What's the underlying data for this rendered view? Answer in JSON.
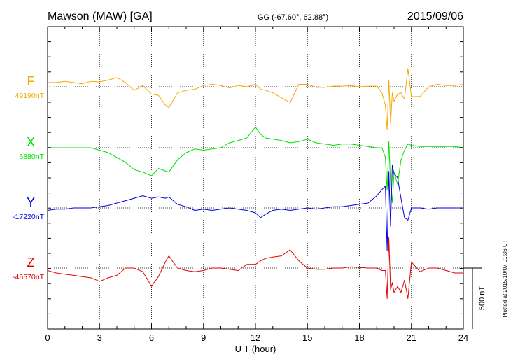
{
  "header": {
    "station": "Mawson (MAW)  [GA]",
    "coords": "GG (-67.60°,  62.88°)",
    "date": "2015/09/06"
  },
  "side_note": "Plotted at 2015/10/07 01:36 UT",
  "scale_label": "500 nT",
  "chart_data": {
    "type": "line",
    "xlabel": "U T (hour)",
    "xlim": [
      0,
      24
    ],
    "xticks": [
      "0",
      "3",
      "6",
      "9",
      "12",
      "15",
      "18",
      "21",
      "24"
    ],
    "scale_bar_nT": 500,
    "series": [
      {
        "name": "F",
        "baseline_label": "49190nT",
        "baseline_nT": 49190,
        "color": "#f5a800",
        "x": [
          0,
          0.5,
          1,
          1.5,
          2,
          2.5,
          3,
          3.5,
          4,
          4.5,
          5,
          5.5,
          6,
          6.4,
          6.8,
          7,
          7.5,
          8,
          8.5,
          9,
          9.5,
          10,
          10.5,
          11,
          11.5,
          12,
          12.3,
          12.6,
          13,
          13.5,
          14,
          14.5,
          15,
          15.5,
          16,
          16.5,
          17,
          17.5,
          18,
          18.5,
          19,
          19.3,
          19.5,
          19.6,
          19.7,
          19.8,
          19.9,
          20,
          20.2,
          20.4,
          20.6,
          20.8,
          21,
          21.5,
          22,
          22.5,
          23,
          23.5,
          24
        ],
        "y": [
          35,
          35,
          45,
          35,
          25,
          45,
          40,
          55,
          75,
          35,
          -30,
          10,
          -60,
          -70,
          -150,
          -170,
          -50,
          -30,
          -20,
          10,
          20,
          10,
          -10,
          10,
          0,
          20,
          -20,
          -30,
          -50,
          -90,
          -130,
          20,
          20,
          -5,
          -5,
          5,
          5,
          10,
          0,
          5,
          5,
          -50,
          -150,
          -350,
          50,
          -300,
          -50,
          -120,
          -60,
          -50,
          -100,
          150,
          -80,
          -80,
          0,
          20,
          10,
          10,
          20
        ]
      },
      {
        "name": "X",
        "baseline_label": "6880nT",
        "baseline_nT": 6880,
        "color": "#00e000",
        "x": [
          0,
          0.5,
          1,
          1.5,
          2,
          2.5,
          3,
          3.5,
          4,
          4.5,
          5,
          5.5,
          6,
          6.4,
          6.8,
          7,
          7.5,
          8,
          8.5,
          9,
          9.5,
          10,
          10.5,
          11,
          11.5,
          12,
          12.3,
          12.6,
          13,
          13.5,
          14,
          14.5,
          15,
          15.5,
          16,
          16.5,
          17,
          17.5,
          18,
          18.5,
          19,
          19.3,
          19.5,
          19.6,
          19.7,
          19.8,
          19.9,
          20,
          20.2,
          20.4,
          20.6,
          20.8,
          21,
          21.5,
          22,
          22.5,
          23,
          23.5,
          24
        ],
        "y": [
          0,
          0,
          0,
          0,
          0,
          0,
          -20,
          -40,
          -80,
          -120,
          -180,
          -200,
          -230,
          -170,
          -190,
          -200,
          -100,
          -40,
          -10,
          -20,
          -10,
          0,
          40,
          60,
          80,
          170,
          110,
          80,
          70,
          60,
          40,
          50,
          70,
          40,
          30,
          20,
          30,
          30,
          20,
          10,
          0,
          0,
          -80,
          -350,
          50,
          -300,
          -450,
          -200,
          -300,
          -100,
          -20,
          30,
          20,
          10,
          10,
          10,
          10,
          10,
          0
        ]
      },
      {
        "name": "Y",
        "baseline_label": "-17220nT",
        "baseline_nT": -17220,
        "color": "#0000e0",
        "x": [
          0,
          0.5,
          1,
          1.5,
          2,
          2.5,
          3,
          3.5,
          4,
          4.5,
          5,
          5.5,
          6,
          6.4,
          6.8,
          7,
          7.5,
          8,
          8.5,
          9,
          9.5,
          10,
          10.5,
          11,
          11.5,
          12,
          12.3,
          12.6,
          13,
          13.5,
          14,
          14.5,
          15,
          15.5,
          16,
          16.5,
          17,
          17.5,
          18,
          18.5,
          19,
          19.3,
          19.5,
          19.6,
          19.7,
          19.8,
          19.9,
          20,
          20.2,
          20.4,
          20.6,
          20.8,
          21,
          21.5,
          22,
          22.5,
          23,
          23.5,
          24
        ],
        "y": [
          -20,
          -10,
          -10,
          0,
          0,
          0,
          10,
          20,
          40,
          60,
          80,
          100,
          80,
          90,
          80,
          90,
          30,
          10,
          -20,
          -10,
          -20,
          -10,
          0,
          -10,
          -20,
          -40,
          -80,
          -50,
          -20,
          -10,
          -20,
          -10,
          0,
          -10,
          0,
          10,
          10,
          20,
          30,
          40,
          100,
          150,
          180,
          -350,
          300,
          -150,
          350,
          280,
          250,
          80,
          -80,
          -100,
          0,
          0,
          -10,
          0,
          0,
          0,
          0
        ]
      },
      {
        "name": "Z",
        "baseline_label": "-45570nT",
        "baseline_nT": -45570,
        "color": "#e00000",
        "x": [
          0,
          0.5,
          1,
          1.5,
          2,
          2.5,
          3,
          3.5,
          4,
          4.5,
          5,
          5.5,
          6,
          6.4,
          6.8,
          7,
          7.5,
          8,
          8.5,
          9,
          9.5,
          10,
          10.5,
          11,
          11.5,
          12,
          12.3,
          12.6,
          13,
          13.5,
          14,
          14.5,
          15,
          15.5,
          16,
          16.5,
          17,
          17.5,
          18,
          18.5,
          19,
          19.3,
          19.5,
          19.6,
          19.7,
          19.8,
          19.9,
          20,
          20.2,
          20.4,
          20.6,
          20.8,
          21,
          21.5,
          22,
          22.5,
          23,
          23.5,
          24
        ],
        "y": [
          -20,
          -40,
          -50,
          -60,
          -70,
          -80,
          -110,
          -80,
          -60,
          0,
          0,
          -30,
          -150,
          -70,
          50,
          100,
          0,
          -20,
          -30,
          -20,
          0,
          0,
          -10,
          -20,
          30,
          30,
          60,
          80,
          90,
          100,
          150,
          60,
          0,
          -10,
          -10,
          0,
          0,
          10,
          5,
          0,
          0,
          -20,
          -20,
          -250,
          250,
          -180,
          -120,
          -200,
          -150,
          -200,
          -100,
          -250,
          50,
          -30,
          0,
          0,
          -20,
          -40,
          -40
        ]
      }
    ]
  }
}
